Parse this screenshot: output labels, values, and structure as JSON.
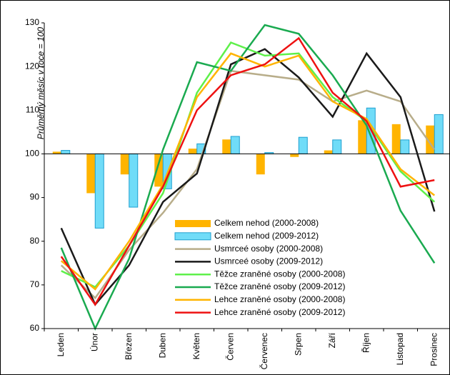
{
  "chart_data": {
    "type": "bar-line",
    "y_label": "Průměrný měsíc v roce = 100",
    "categories": [
      "Leden",
      "Únor",
      "Březen",
      "Duben",
      "Květen",
      "Červen",
      "Červenec",
      "Srpen",
      "Září",
      "Říjen",
      "Listopad",
      "Prosinec"
    ],
    "ylim": [
      60,
      130
    ],
    "yticks": [
      60,
      70,
      80,
      90,
      100,
      110,
      120,
      130
    ],
    "baseline": 100,
    "grid": false,
    "series": [
      {
        "name": "Celkem nehod (2000-2008)",
        "type": "bar",
        "color": "#ffb400",
        "values": [
          100.5,
          91,
          95.3,
          92.5,
          101.2,
          103.3,
          95.3,
          99.3,
          100.8,
          107.7,
          106.8,
          106.5
        ]
      },
      {
        "name": "Celkem nehod (2009-2012)",
        "type": "bar",
        "color": "#70dcf8",
        "values": [
          100.8,
          83,
          87.8,
          92,
          102.3,
          104,
          100.3,
          103.8,
          103.2,
          110.5,
          103.2,
          109
        ]
      },
      {
        "name": "Usmrceé osoby (2000-2008)",
        "type": "line",
        "color": "#b8ad8a",
        "values": [
          74.5,
          67,
          78,
          86.5,
          96.5,
          119,
          118,
          117,
          112,
          114.5,
          112,
          101
        ]
      },
      {
        "name": "Usmrceé osoby (2009-2012)",
        "type": "line",
        "color": "#1a1a1a",
        "values": [
          83,
          65.5,
          74.5,
          89,
          95.5,
          120.5,
          124,
          117.5,
          108.5,
          123,
          113,
          86.8
        ]
      },
      {
        "name": "Těžce zraněné osoby (2000-2008)",
        "type": "line",
        "color": "#5ef04a",
        "values": [
          73.2,
          69.5,
          79,
          91,
          114,
          125.5,
          122.5,
          123,
          113,
          107.5,
          96,
          89
        ]
      },
      {
        "name": "Těžce zraněné osoby (2009-2012)",
        "type": "line",
        "color": "#1aaa50",
        "values": [
          78.5,
          60,
          76,
          101,
          121,
          119,
          129.5,
          127.5,
          118,
          106.5,
          87,
          75
        ]
      },
      {
        "name": "Lehce zraněné osoby (2000-2008)",
        "type": "line",
        "color": "#ffb400",
        "values": [
          75.5,
          69,
          80,
          93,
          113,
          123,
          120,
          122.5,
          112,
          108,
          96.5,
          90.5
        ]
      },
      {
        "name": "Lehce zraněné osoby (2009-2012)",
        "type": "line",
        "color": "#ee1111",
        "values": [
          76.5,
          65.5,
          79,
          92.5,
          110,
          118,
          120.5,
          126.5,
          114,
          107.5,
          92.5,
          94
        ]
      }
    ]
  }
}
